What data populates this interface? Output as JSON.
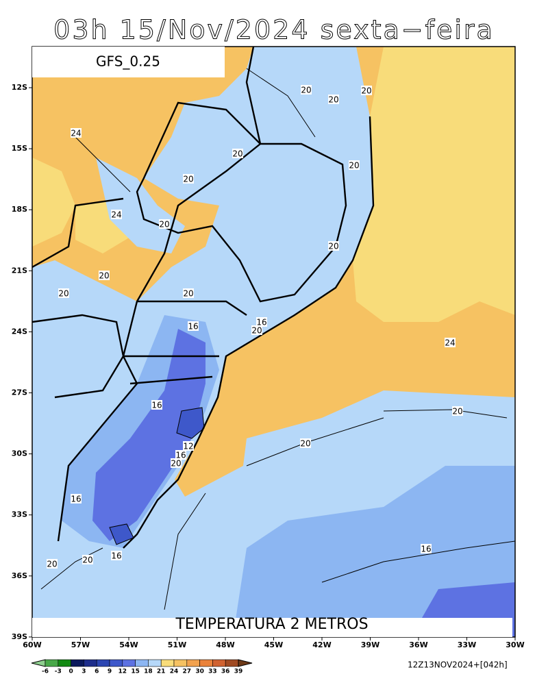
{
  "header": {
    "title": "03h 15/Nov/2024 sexta−feira",
    "model": "GFS_0.25"
  },
  "map": {
    "caption": "TEMPERATURA 2 METROS",
    "lat_labels": [
      "12S",
      "15S",
      "18S",
      "21S",
      "24S",
      "27S",
      "30S",
      "33S",
      "36S",
      "39S"
    ],
    "lon_labels": [
      "60W",
      "57W",
      "54W",
      "51W",
      "48W",
      "45W",
      "42W",
      "39W",
      "36W",
      "33W",
      "30W"
    ],
    "contour_labels": [
      "20",
      "20",
      "20",
      "24",
      "20",
      "20",
      "20",
      "24",
      "20",
      "20",
      "20",
      "20",
      "20",
      "16",
      "16",
      "20",
      "24",
      "20",
      "16",
      "20",
      "12",
      "16",
      "20",
      "16",
      "16",
      "20",
      "20",
      "16"
    ]
  },
  "colorbar": {
    "ticks": [
      -6,
      -3,
      0,
      3,
      6,
      9,
      12,
      15,
      18,
      21,
      24,
      27,
      30,
      33,
      36,
      39
    ],
    "colors": [
      "#8fd08f",
      "#48a848",
      "#138a13",
      "#0b1a5c",
      "#1e2e8c",
      "#2c46b2",
      "#3e58ca",
      "#5d72e2",
      "#8cb6f2",
      "#b6d8f9",
      "#f8dc7a",
      "#f6c262",
      "#f2a24e",
      "#ea823a",
      "#d06230",
      "#a04a22",
      "#6e3a18"
    ]
  },
  "footer": {
    "run": "12Z13NOV2024+[042h]"
  }
}
